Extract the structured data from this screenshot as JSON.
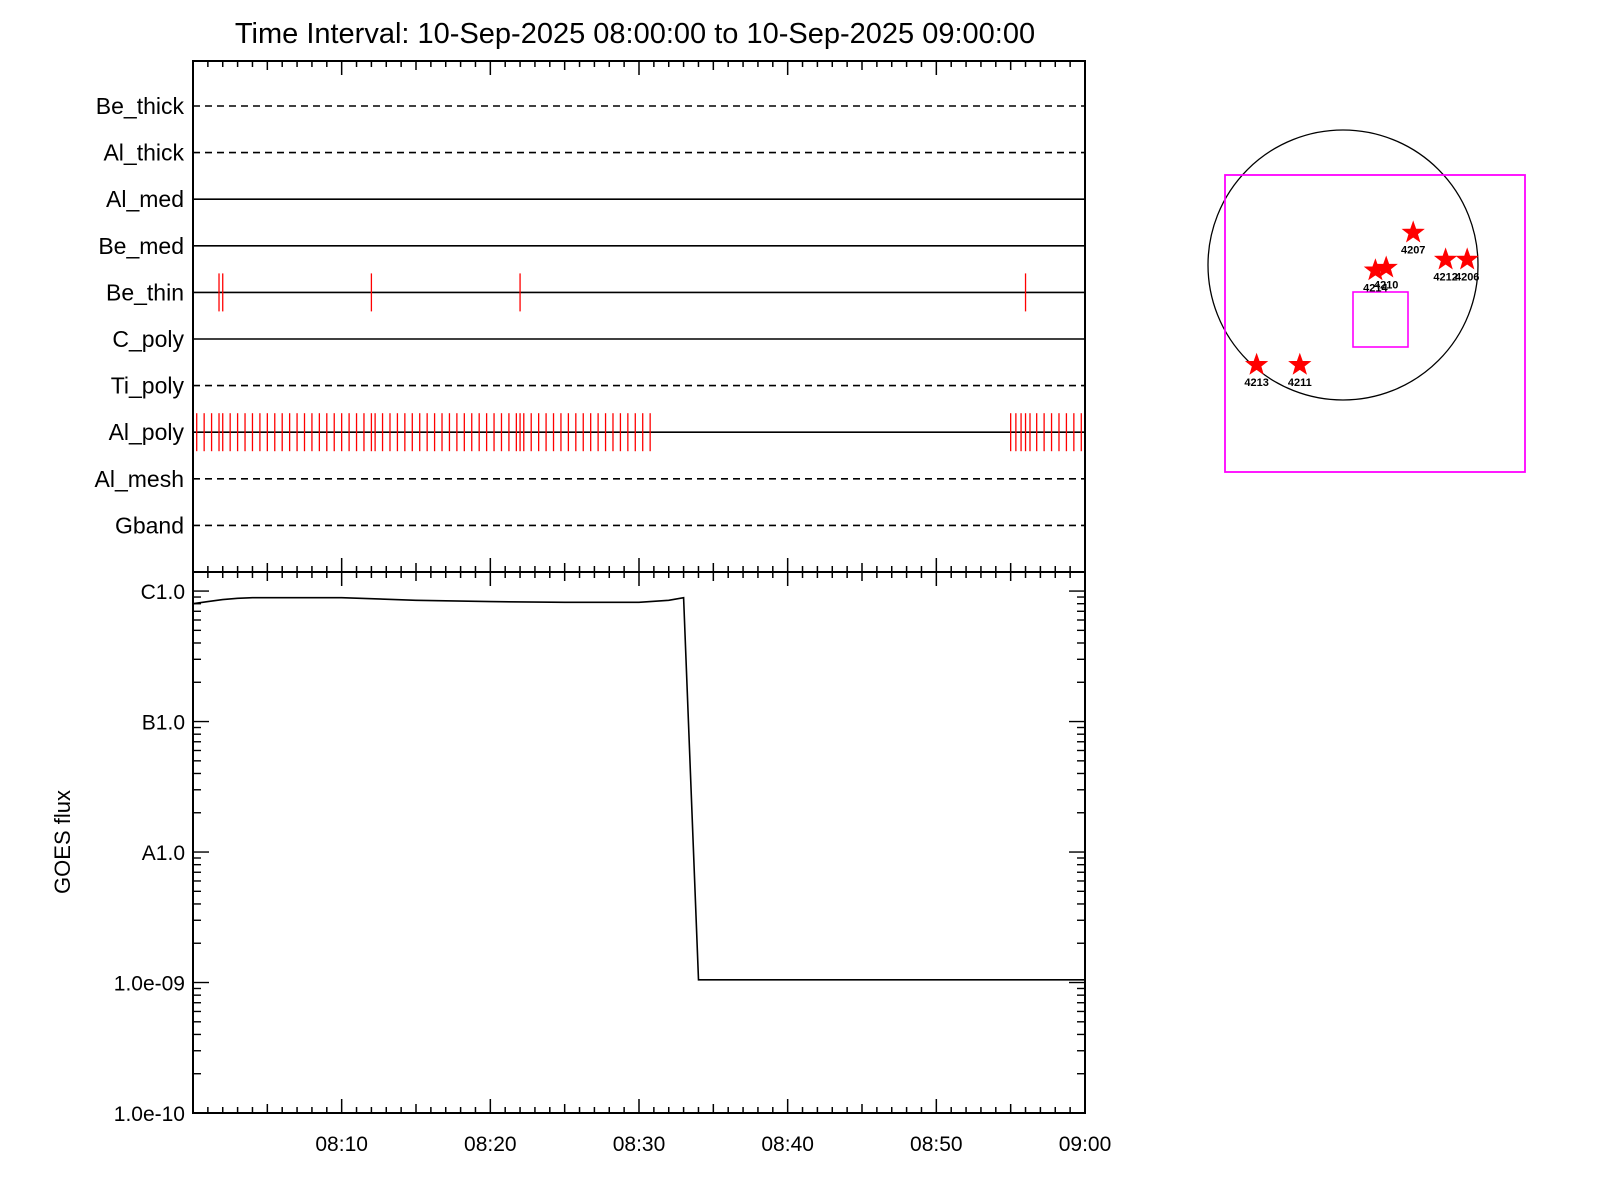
{
  "chart_data": [
    {
      "type": "timeline",
      "title": "Time Interval: 10-Sep-2025 08:00:00 to 10-Sep-2025 09:00:00",
      "time_range": [
        "08:00",
        "09:00"
      ],
      "filters": [
        {
          "name": "Be_thick",
          "line": "dashed",
          "events": []
        },
        {
          "name": "Al_thick",
          "line": "dashed",
          "events": []
        },
        {
          "name": "Al_med",
          "line": "solid",
          "events": []
        },
        {
          "name": "Be_med",
          "line": "solid",
          "events": []
        },
        {
          "name": "Be_thin",
          "line": "solid",
          "events": [
            1.75,
            2.0,
            12.0,
            22.0,
            56.0
          ]
        },
        {
          "name": "C_poly",
          "line": "solid",
          "events": []
        },
        {
          "name": "Ti_poly",
          "line": "dashed",
          "events": []
        },
        {
          "name": "Al_poly",
          "line": "solid",
          "events": [
            0.25,
            0.75,
            1.25,
            1.75,
            2.0,
            2.5,
            3.0,
            3.5,
            4.0,
            4.5,
            5.0,
            5.5,
            6.0,
            6.5,
            7.0,
            7.5,
            8.0,
            8.5,
            9.0,
            9.5,
            10.0,
            10.5,
            11.0,
            11.5,
            12.0,
            12.25,
            12.75,
            13.25,
            13.75,
            14.25,
            14.75,
            15.25,
            15.75,
            16.25,
            16.75,
            17.25,
            17.75,
            18.25,
            18.75,
            19.25,
            19.75,
            20.25,
            20.75,
            21.25,
            21.75,
            22.0,
            22.25,
            22.75,
            23.25,
            23.75,
            24.25,
            24.75,
            25.25,
            25.75,
            26.25,
            26.75,
            27.25,
            27.75,
            28.25,
            28.75,
            29.25,
            29.75,
            30.25,
            30.75,
            55.0,
            55.35,
            55.7,
            56.0,
            56.3,
            56.75,
            57.25,
            57.75,
            58.25,
            58.75,
            59.25,
            59.75
          ]
        },
        {
          "name": "Al_mesh",
          "line": "dashed",
          "events": []
        },
        {
          "name": "Gband",
          "line": "dashed",
          "events": []
        }
      ],
      "colors": {
        "event": "#ff0000",
        "axis": "#000000"
      }
    },
    {
      "type": "line",
      "ylabel": "GOES flux",
      "yscale": "log",
      "ylim": [
        1e-10,
        1.4e-06
      ],
      "yticks": [
        {
          "value": 1e-06,
          "label": "C1.0"
        },
        {
          "value": 1e-07,
          "label": "B1.0"
        },
        {
          "value": 1e-08,
          "label": "A1.0"
        },
        {
          "value": 1e-09,
          "label": "1.0e-09"
        },
        {
          "value": 1e-10,
          "label": "1.0e-10"
        }
      ],
      "xlim": [
        "08:00",
        "09:00"
      ],
      "xticks": [
        "08:10",
        "08:20",
        "08:30",
        "08:40",
        "08:50",
        "09:00"
      ],
      "series": [
        {
          "x": [
            "08:00",
            "08:01",
            "08:02",
            "08:03",
            "08:04",
            "08:10",
            "08:15",
            "08:20",
            "08:25",
            "08:30",
            "08:32",
            "08:33",
            "08:34",
            "08:45",
            "09:00"
          ],
          "y": [
            8e-07,
            8.3e-07,
            8.6e-07,
            8.8e-07,
            8.9e-07,
            8.9e-07,
            8.5e-07,
            8.3e-07,
            8.2e-07,
            8.2e-07,
            8.5e-07,
            8.9e-07,
            1.05e-09,
            1.05e-09,
            1.05e-09
          ]
        }
      ],
      "colors": {
        "line": "#000000"
      }
    },
    {
      "type": "scatter",
      "region": "solar-disk",
      "colors": {
        "disk": "#000000",
        "fov": "#ff00ff",
        "marker": "#ff0000"
      },
      "field_of_view": {
        "outer": "large",
        "inner": "small"
      },
      "active_regions": [
        {
          "label": "4207",
          "pos": [
            0.76,
            0.38
          ]
        },
        {
          "label": "4206",
          "pos": [
            0.96,
            0.48
          ]
        },
        {
          "label": "4212",
          "pos": [
            0.88,
            0.48
          ]
        },
        {
          "label": "4210",
          "pos": [
            0.66,
            0.51
          ]
        },
        {
          "label": "4214",
          "pos": [
            0.62,
            0.52
          ]
        },
        {
          "label": "4213",
          "pos": [
            0.18,
            0.87
          ]
        },
        {
          "label": "4211",
          "pos": [
            0.34,
            0.87
          ]
        }
      ]
    }
  ]
}
